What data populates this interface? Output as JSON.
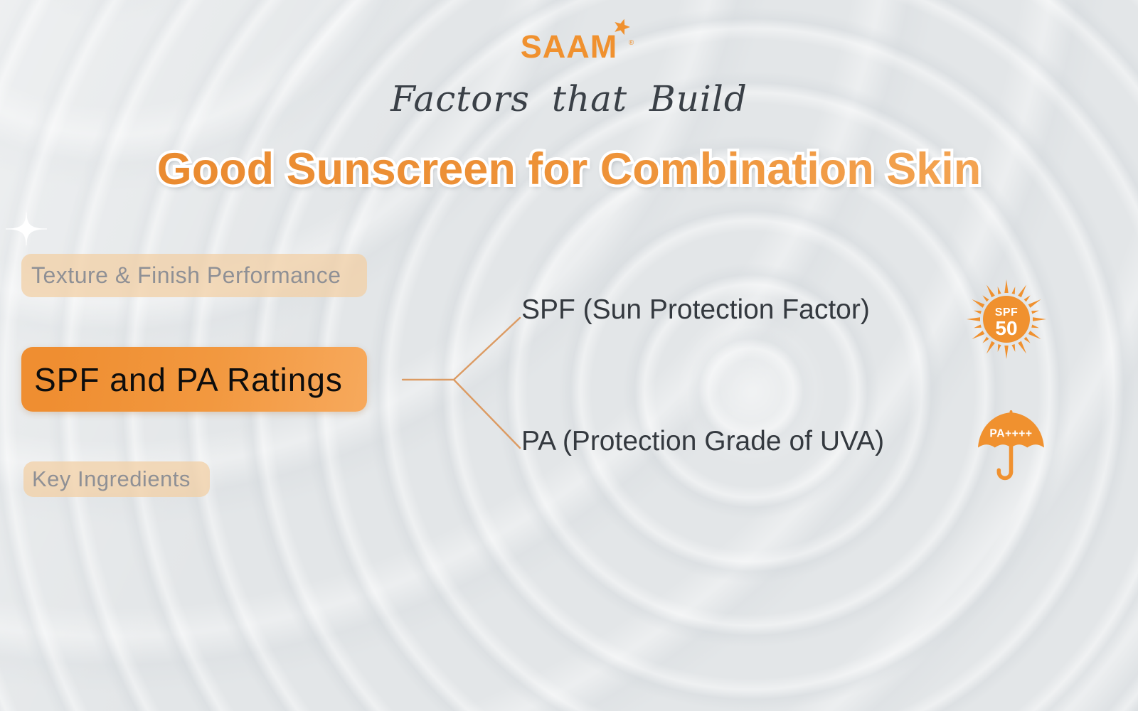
{
  "brand": {
    "logo_text": "SAAM",
    "registered_mark": "®"
  },
  "header": {
    "tagline": "Factors that Build",
    "title": "Good Sunscreen for Combination Skin"
  },
  "sidebar": {
    "items": [
      {
        "label": "Texture & Finish Performance",
        "active": false
      },
      {
        "label": "SPF and PA Ratings",
        "active": true
      },
      {
        "label": "Key Ingredients",
        "active": false
      }
    ]
  },
  "branches": [
    {
      "label": "SPF (Sun Protection Factor)",
      "icon": "sun-spf50-icon",
      "badge_line1": "SPF",
      "badge_line2": "50"
    },
    {
      "label": "PA (Protection Grade of UVA)",
      "icon": "pa-umbrella-icon",
      "badge_text": "PA++++"
    }
  ],
  "colors": {
    "accent_orange": "#F0912F",
    "button_gradient_start": "#EF8E31",
    "button_gradient_end": "#F7A95C",
    "inactive_pill_bg": "rgba(242,206,162,0.72)",
    "inactive_pill_text": "#8F9095",
    "title_gradient_start": "#E9882D",
    "title_gradient_end": "#F6AB5C",
    "connector_line": "#DC9B63",
    "dark_text": "#34393F",
    "tagline_text": "#3A4047",
    "background": "#E3E6E8"
  }
}
